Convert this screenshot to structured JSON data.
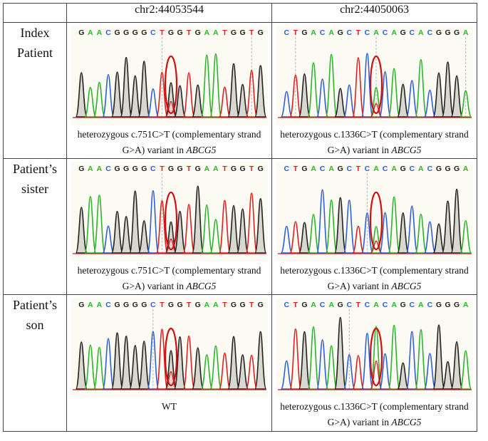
{
  "columns": [
    "",
    "chr2:44053544",
    "chr2:44050063"
  ],
  "colors": {
    "A": "#2bb52b",
    "C": "#3060d8",
    "G": "#222222",
    "T": "#e02020",
    "circle": "#d01010"
  },
  "rows": [
    {
      "label_lines": [
        "Index",
        "Patient"
      ],
      "left": {
        "sequence": "GAACGGGGCTGGTGAATGGTG",
        "caption_line1": "heterozygous c.751C>T (complementary strand",
        "caption_line2_prefix": "G>A) variant in ",
        "gene": "ABCG5",
        "variant_index": 10,
        "dash_indices": [
          9,
          19
        ]
      },
      "right": {
        "sequence": "CTGACAGCTCACAGCACGGGA",
        "caption_line1": "heterozygous c.1336C>T (complementary strand",
        "caption_line2_prefix": "G>A) variant in ",
        "gene": "ABCG5",
        "variant_index": 10,
        "dash_indices": [
          1,
          10,
          20
        ]
      }
    },
    {
      "label_lines": [
        "Patient’s",
        "sister"
      ],
      "left": {
        "sequence": "GAACGGGGCTGGTGAATGGTG",
        "caption_line1": "heterozygous c.751C>T (complementary strand",
        "caption_line2_prefix": "G>A) variant in ",
        "gene": "ABCG5",
        "variant_index": 10,
        "dash_indices": [
          9
        ]
      },
      "right": {
        "sequence": "CTGACAGCTCACAGCACGGGA",
        "caption_line1": "heterozygous c.1336C>T (complementary strand",
        "caption_line2_prefix": "G>A) variant in ",
        "gene": "ABCG5",
        "variant_index": 10,
        "dash_indices": [
          9
        ]
      }
    },
    {
      "label_lines": [
        "Patient’s",
        "son"
      ],
      "left": {
        "sequence": "GAACGGGGCTGGTGAATGGTG",
        "caption_line1": "WT",
        "caption_line2_prefix": "",
        "gene": "",
        "variant_index": 10,
        "dash_indices": [
          8
        ]
      },
      "right": {
        "sequence": "CTGACAGCTCACAGCACGGGA",
        "caption_line1": "heterozygous c.1336C>T (complementary strand",
        "caption_line2_prefix": "G>A) variant in ",
        "gene": "ABCG5",
        "variant_index": 10,
        "dash_indices": [
          7
        ]
      }
    }
  ]
}
